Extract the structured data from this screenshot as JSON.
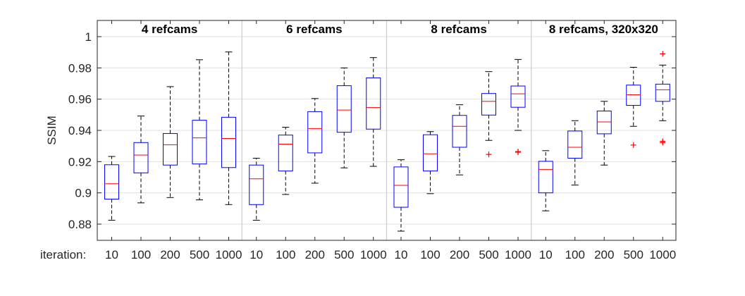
{
  "chart_data": {
    "type": "box",
    "ylabel": "SSIM",
    "xlabel_prefix": "iteration:",
    "ylim": [
      0.87,
      1.01
    ],
    "yticks": [
      0.88,
      0.9,
      0.92,
      0.94,
      0.96,
      0.98,
      1
    ],
    "ytick_labels": [
      "0.88",
      "0.9",
      "0.92",
      "0.94",
      "0.96",
      "0.98",
      "1"
    ],
    "grid": true,
    "colors": {
      "box": "#0000ff",
      "median": "#ff0000",
      "whisker": "#000000",
      "outlier": "#ff0000",
      "grid": "#e0e0e0",
      "axis": "#262626",
      "divider": "#cccccc"
    },
    "categories": [
      "10",
      "100",
      "200",
      "500",
      "1000"
    ],
    "panels": [
      {
        "title": "4 refcams",
        "boxes": [
          {
            "iteration": "10",
            "min": 0.8825,
            "q1": 0.896,
            "median": 0.9058,
            "q3": 0.918,
            "max": 0.9233,
            "outliers": []
          },
          {
            "iteration": "100",
            "min": 0.8936,
            "q1": 0.9128,
            "median": 0.9242,
            "q3": 0.9322,
            "max": 0.9492,
            "outliers": []
          },
          {
            "iteration": "200",
            "min": 0.897,
            "q1": 0.9178,
            "median": 0.9308,
            "q3": 0.938,
            "max": 0.968,
            "outliers": []
          },
          {
            "iteration": "500",
            "min": 0.8955,
            "q1": 0.9185,
            "median": 0.9352,
            "q3": 0.9465,
            "max": 0.9852,
            "outliers": []
          },
          {
            "iteration": "1000",
            "min": 0.8925,
            "q1": 0.9162,
            "median": 0.9348,
            "q3": 0.9484,
            "max": 0.9902,
            "outliers": []
          }
        ]
      },
      {
        "title": "6 refcams",
        "boxes": [
          {
            "iteration": "10",
            "min": 0.8825,
            "q1": 0.8925,
            "median": 0.909,
            "q3": 0.9178,
            "max": 0.9222,
            "outliers": []
          },
          {
            "iteration": "100",
            "min": 0.899,
            "q1": 0.914,
            "median": 0.9312,
            "q3": 0.937,
            "max": 0.942,
            "outliers": []
          },
          {
            "iteration": "200",
            "min": 0.9062,
            "q1": 0.9256,
            "median": 0.9412,
            "q3": 0.952,
            "max": 0.9604,
            "outliers": []
          },
          {
            "iteration": "500",
            "min": 0.916,
            "q1": 0.9388,
            "median": 0.953,
            "q3": 0.9686,
            "max": 0.98,
            "outliers": []
          },
          {
            "iteration": "1000",
            "min": 0.917,
            "q1": 0.9408,
            "median": 0.9546,
            "q3": 0.9736,
            "max": 0.9866,
            "outliers": []
          }
        ]
      },
      {
        "title": "8 refcams",
        "boxes": [
          {
            "iteration": "10",
            "min": 0.8755,
            "q1": 0.8908,
            "median": 0.9048,
            "q3": 0.9166,
            "max": 0.9212,
            "outliers": []
          },
          {
            "iteration": "100",
            "min": 0.8995,
            "q1": 0.914,
            "median": 0.925,
            "q3": 0.9372,
            "max": 0.9392,
            "outliers": []
          },
          {
            "iteration": "200",
            "min": 0.9115,
            "q1": 0.9292,
            "median": 0.9426,
            "q3": 0.9496,
            "max": 0.9564,
            "outliers": []
          },
          {
            "iteration": "500",
            "min": 0.9336,
            "q1": 0.9498,
            "median": 0.9586,
            "q3": 0.9636,
            "max": 0.9776,
            "outliers": [
              0.9246
            ]
          },
          {
            "iteration": "1000",
            "min": 0.94,
            "q1": 0.9548,
            "median": 0.9634,
            "q3": 0.9684,
            "max": 0.9854,
            "outliers": [
              0.926,
              0.9264
            ]
          }
        ]
      },
      {
        "title": "8 refcams, 320x320",
        "boxes": [
          {
            "iteration": "10",
            "min": 0.8885,
            "q1": 0.9,
            "median": 0.915,
            "q3": 0.9202,
            "max": 0.927,
            "outliers": []
          },
          {
            "iteration": "100",
            "min": 0.905,
            "q1": 0.9222,
            "median": 0.9292,
            "q3": 0.9396,
            "max": 0.9462,
            "outliers": []
          },
          {
            "iteration": "200",
            "min": 0.9178,
            "q1": 0.9378,
            "median": 0.9454,
            "q3": 0.9524,
            "max": 0.9586,
            "outliers": []
          },
          {
            "iteration": "500",
            "min": 0.9426,
            "q1": 0.956,
            "median": 0.9628,
            "q3": 0.969,
            "max": 0.9804,
            "outliers": [
              0.9306
            ]
          },
          {
            "iteration": "1000",
            "min": 0.9462,
            "q1": 0.9586,
            "median": 0.966,
            "q3": 0.9696,
            "max": 0.9818,
            "outliers": [
              0.9322,
              0.933,
              0.989
            ]
          }
        ]
      }
    ]
  }
}
